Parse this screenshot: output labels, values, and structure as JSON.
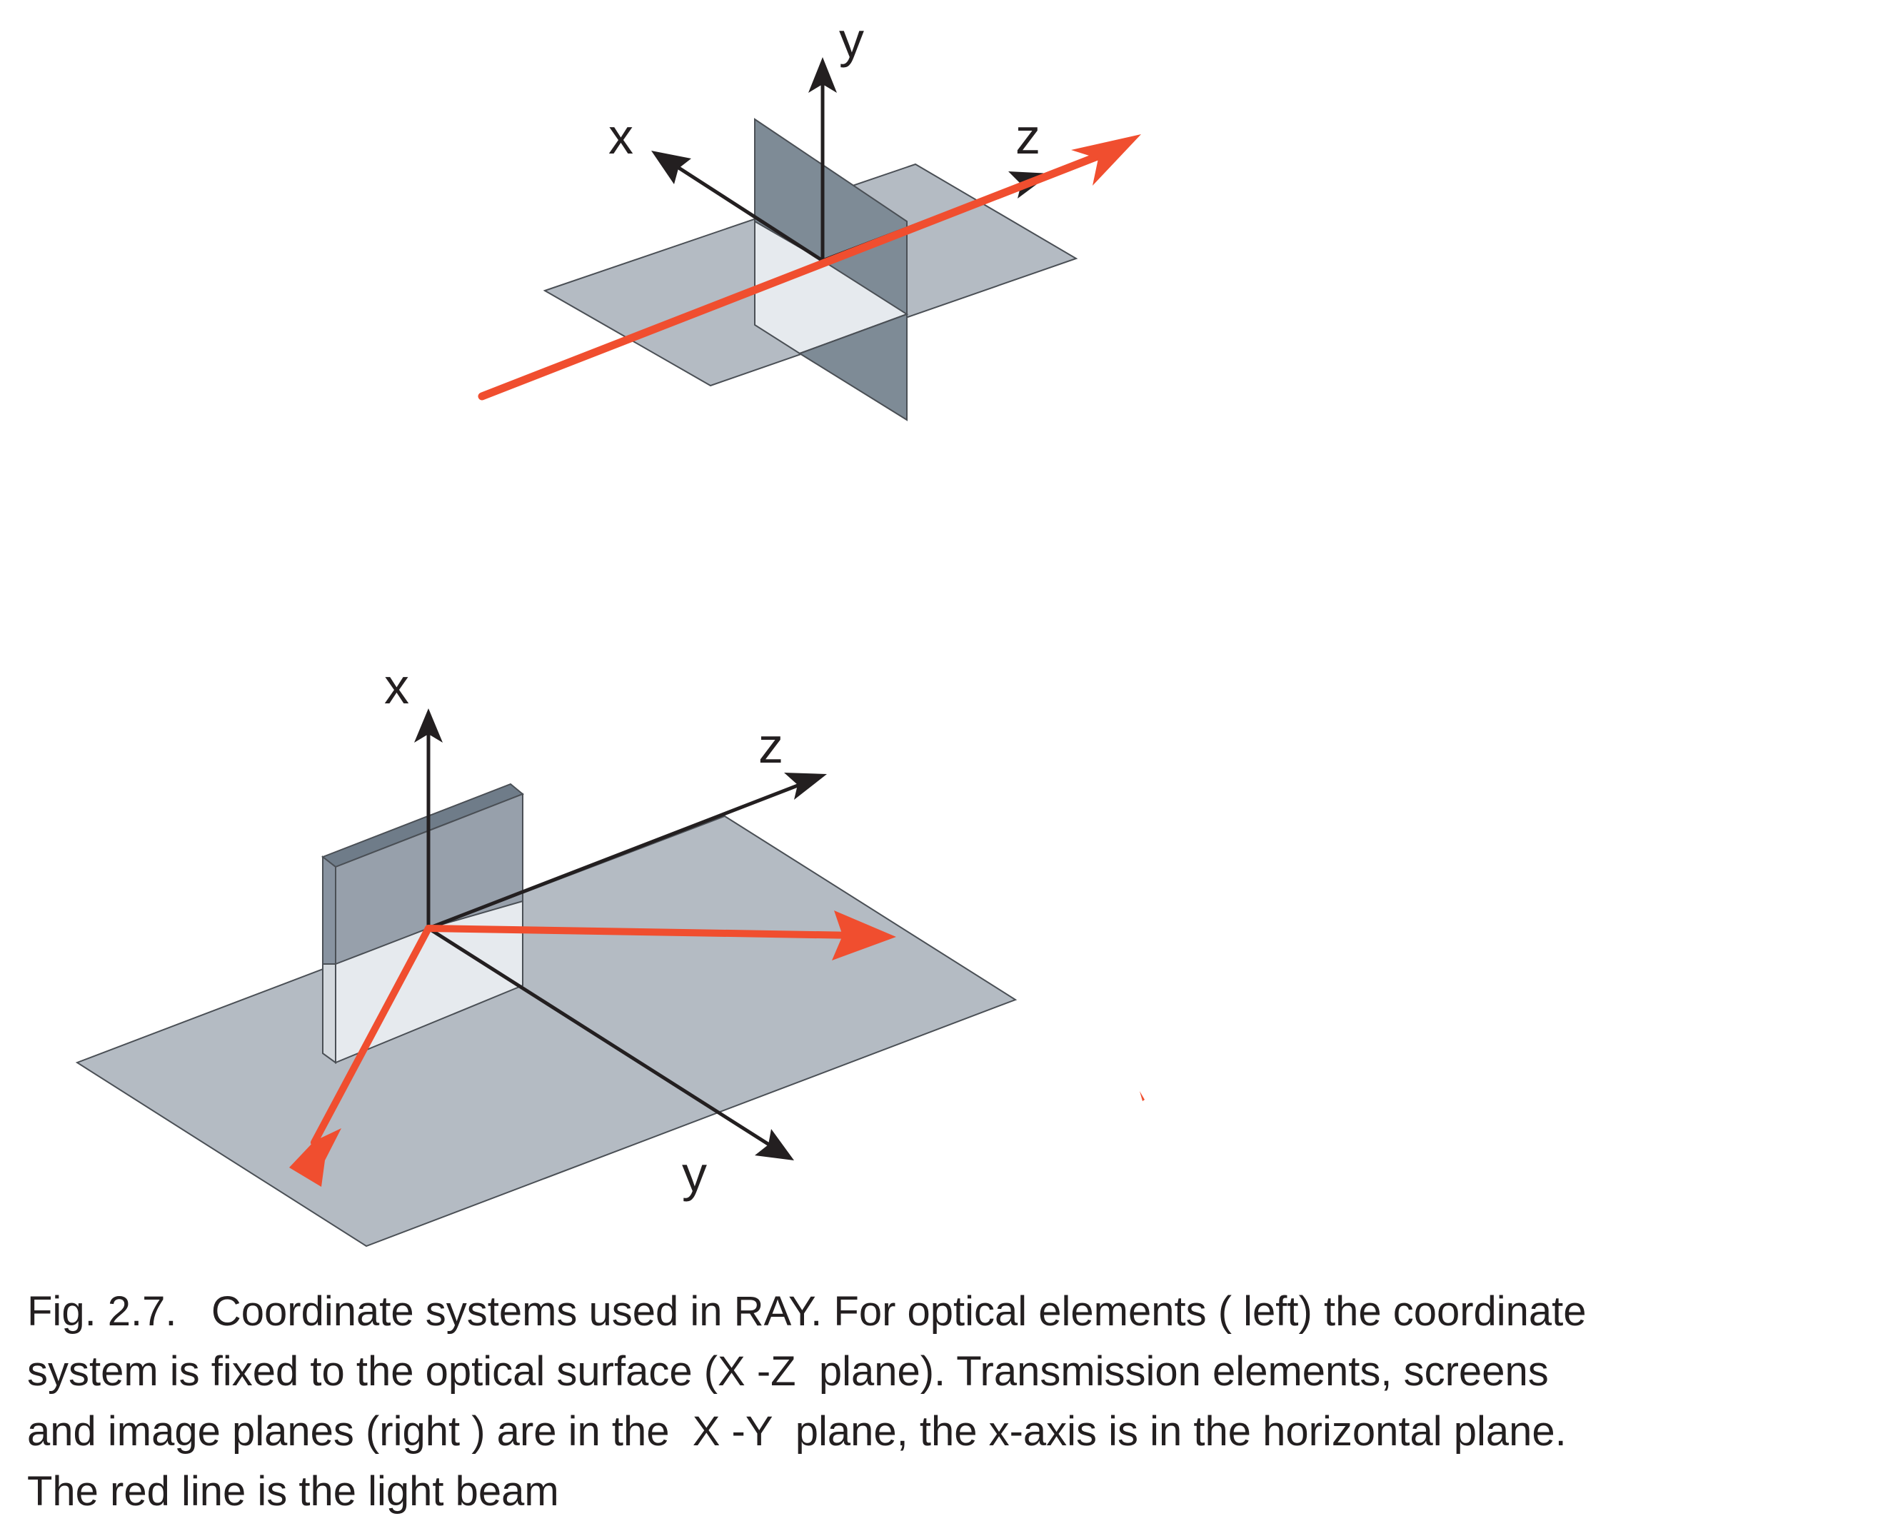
{
  "colors": {
    "beam": "#f04e2f",
    "axis": "#231f20",
    "plane_light": "#b4bbc3",
    "plane_dark": "#7e8b96",
    "plane_pale": "#e6eaee",
    "element_front": "#97a0ab",
    "element_top": "#6f7c89"
  },
  "top_diagram": {
    "axis_x_label": "x",
    "axis_y_label": "y",
    "axis_z_label": "z"
  },
  "bottom_diagram": {
    "axis_x_label": "x",
    "axis_y_label": "y",
    "axis_z_label": "z"
  },
  "caption": {
    "line1": "Fig. 2.7.   Coordinate systems used in RAY. For optical elements ( left) the coordinate",
    "line2": "system is fixed to the optical surface (X -Z  plane). Transmission elements, screens",
    "line3": "and image planes (right ) are in the  X -Y  plane, the x-axis is in the horizontal plane.",
    "line4": "The red line is the light beam"
  }
}
